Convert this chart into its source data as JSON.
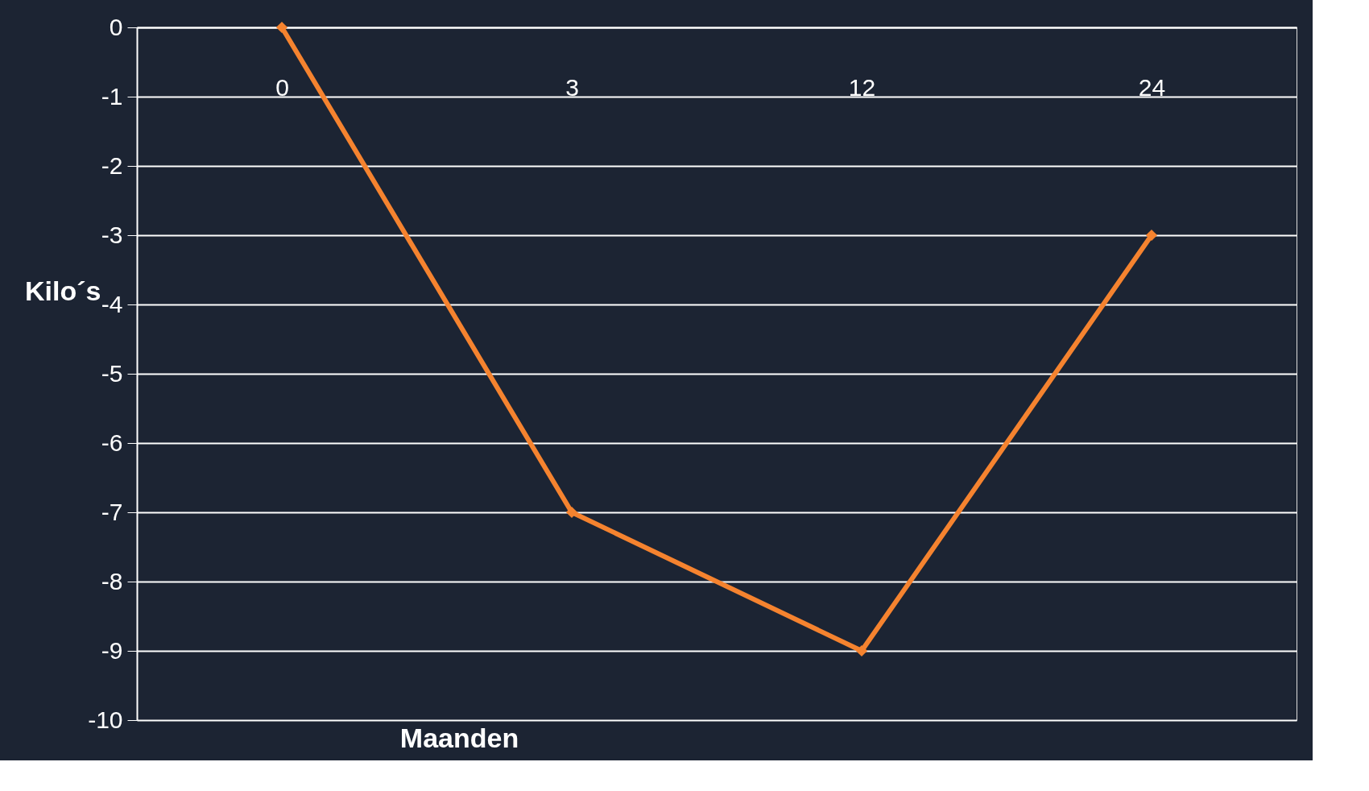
{
  "chart_data": {
    "type": "line",
    "xlabel": "Maanden",
    "ylabel": "Kilo´s",
    "categories": [
      "0",
      "3",
      "12",
      "24"
    ],
    "series": [
      {
        "color": "#f5832f",
        "values": [
          0,
          -7,
          -9,
          -3
        ]
      }
    ],
    "ylim": [
      -10,
      0
    ],
    "yticks": [
      0,
      -1,
      -2,
      -3,
      -4,
      -5,
      -6,
      -7,
      -8,
      -9,
      -10
    ],
    "grid": "y",
    "marker": "diamond",
    "line_style": "solid"
  }
}
